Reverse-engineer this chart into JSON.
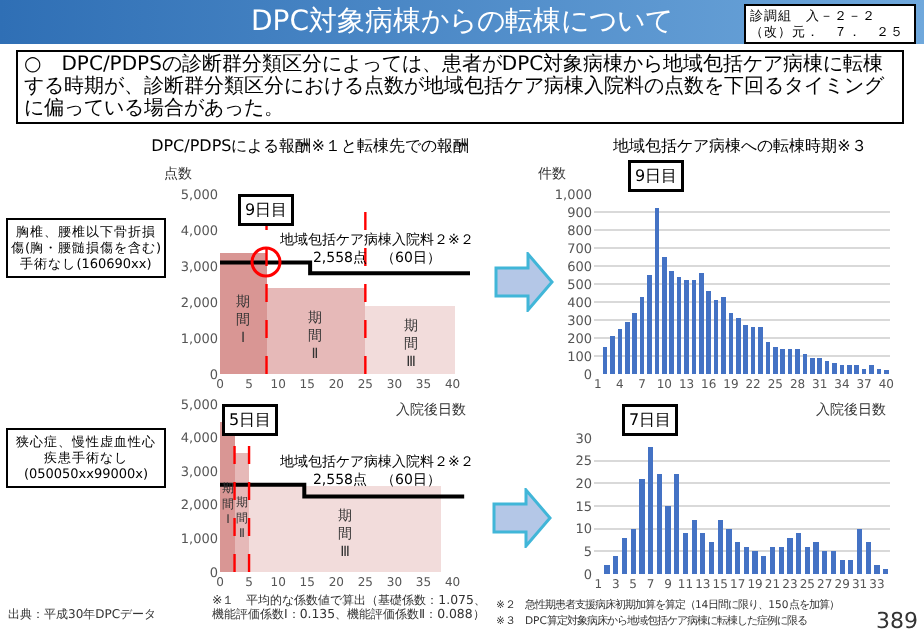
{
  "chart_data": [
    {
      "type": "other",
      "title": "DPC対象病棟からの転棟について",
      "subtitle": "○　DPC/PDPSの診断群分類区分によっては、患者がDPC対象病棟から地域包括ケア病棟に転棟する時期が、診断群分類区分における点数が地域包括ケア病棟入院料の点数を下回るタイミングに偏っている場合があった。",
      "annotations": [
        "診調組　入－２－２（改）元．　７．　２５",
        "出典：平成30年DPCデータ",
        "※１　平均的な係数値で算出（基礎係数：1.075、機能評価係数Ⅰ：0.135、機能評価係数Ⅱ：0.088）",
        "※２　急性期患者支援病床初期加算を算定（14日間に限り、150点を加算）",
        "※３　DPC算定対象病床から地域包括ケア病棟に転棟した症例に限る",
        "389"
      ]
    },
    {
      "type": "step",
      "title": "DPC/PDPSによる報酬※１と転棟先での報酬",
      "xlabel": "入院後日数",
      "ylabel": "点数",
      "xlim": [
        0,
        43
      ],
      "xticks": [
        0,
        5,
        10,
        15,
        20,
        25,
        30,
        35,
        40
      ],
      "ylim": [
        0,
        5000
      ],
      "yticks": [
        0,
        {
          "value": 1000,
          "label": "1,000"
        },
        {
          "value": 2000,
          "label": "2,000"
        },
        {
          "value": 3000,
          "label": "3,000"
        },
        {
          "value": 4000,
          "label": "4,000"
        },
        {
          "value": 5000,
          "label": "5,000"
        }
      ],
      "grid": false,
      "series": [
        {
          "type": "histogram",
          "bins": [
            0,
            8,
            25,
            40.5
          ],
          "values": [
            3350,
            2400,
            1900
          ],
          "colors": [
            "#d99694",
            "#e6b9b8",
            "#f2dcdb"
          ]
        },
        {
          "type": "step",
          "color": "#000000",
          "x": [
            0,
            15.5,
            43
          ],
          "values": [
            3100,
            2800,
            2800
          ]
        }
      ],
      "ref_lines": [
        {
          "axis": "x",
          "value": 8,
          "label": "9日目",
          "color": "#ff0000",
          "line_style": "dashed"
        },
        {
          "axis": "x",
          "value": 25,
          "color": "#ff0000",
          "line_style": "dashed"
        }
      ],
      "annotations": [
        "胸椎、腰椎以下骨折損傷(胸・腰髄損傷を含む)手術なし(160690xx)",
        "期間Ⅰ",
        "期間Ⅱ",
        "期間Ⅲ",
        {
          "text": "地域包括ケア病棟入院料２※２\n2,558点　（60日）",
          "x": 27,
          "y": 2800
        }
      ]
    },
    {
      "type": "bar",
      "title": "地域包括ケア病棟への転棟時期※３",
      "xlabel": "入院後日数",
      "ylabel": "件数",
      "x": [
        2,
        3,
        4,
        5,
        6,
        7,
        8,
        9,
        10,
        11,
        12,
        13,
        14,
        15,
        16,
        17,
        18,
        19,
        20,
        21,
        22,
        23,
        24,
        25,
        26,
        27,
        28,
        29,
        30,
        31,
        32,
        33,
        34,
        35,
        36,
        37,
        38,
        39,
        40
      ],
      "values": [
        150,
        210,
        250,
        290,
        340,
        430,
        550,
        920,
        650,
        570,
        540,
        520,
        520,
        560,
        460,
        410,
        430,
        340,
        310,
        270,
        260,
        260,
        180,
        150,
        140,
        140,
        140,
        110,
        90,
        90,
        70,
        60,
        50,
        50,
        50,
        30,
        50,
        30,
        20
      ],
      "color": "#4472c4",
      "xlim": [
        0.5,
        40.5
      ],
      "xticks": [
        1,
        4,
        7,
        10,
        13,
        16,
        19,
        22,
        25,
        28,
        31,
        34,
        37,
        40
      ],
      "ylim": [
        0,
        1000
      ],
      "yticks": [
        0,
        100,
        200,
        300,
        400,
        500,
        600,
        700,
        800,
        900,
        {
          "value": 1000,
          "label": "1,000"
        }
      ],
      "grid": "y",
      "annotations": [
        "9日目"
      ]
    },
    {
      "type": "step",
      "xlim": [
        0,
        43
      ],
      "xticks": [
        0,
        5,
        10,
        15,
        20,
        25,
        30,
        35,
        40
      ],
      "ylim": [
        0,
        5000
      ],
      "yticks": [
        0,
        {
          "value": 1000,
          "label": "1,000"
        },
        {
          "value": 2000,
          "label": "2,000"
        },
        {
          "value": 3000,
          "label": "3,000"
        },
        {
          "value": 4000,
          "label": "4,000"
        },
        {
          "value": 5000,
          "label": "5,000"
        }
      ],
      "grid": false,
      "series": [
        {
          "type": "histogram",
          "bins": [
            0,
            2.5,
            5,
            38
          ],
          "values": [
            4450,
            3550,
            2550
          ],
          "colors": [
            "#d99694",
            "#e6b9b8",
            "#f2dcdb"
          ]
        },
        {
          "type": "step",
          "color": "#000000",
          "x": [
            0,
            14.5,
            42
          ],
          "values": [
            2600,
            2250,
            2250
          ]
        }
      ],
      "ref_lines": [
        {
          "axis": "x",
          "value": 2.5,
          "color": "#ff0000",
          "line_style": "dashed"
        },
        {
          "axis": "x",
          "value": 5,
          "label": "5日目",
          "color": "#ff0000",
          "line_style": "dashed"
        }
      ],
      "annotations": [
        "狭心症、慢性虚血性心疾患手術なし(050050xx99000x)",
        "期間Ⅰ",
        "期間Ⅱ",
        "期間Ⅲ",
        {
          "text": "地域包括ケア病棟入院料２※２\n2,558点　（60日）",
          "x": 27,
          "y": 2250
        }
      ]
    },
    {
      "type": "bar",
      "x": [
        2,
        3,
        4,
        5,
        6,
        7,
        8,
        9,
        10,
        11,
        12,
        13,
        14,
        15,
        16,
        17,
        18,
        19,
        20,
        21,
        22,
        23,
        24,
        25,
        26,
        27,
        28,
        29,
        30,
        31,
        32,
        33,
        34
      ],
      "values": [
        2,
        4,
        8,
        10,
        21,
        28,
        22,
        15,
        22,
        9,
        12,
        9,
        7,
        12,
        10,
        7,
        6,
        5,
        4,
        6,
        6,
        8,
        9,
        6,
        7,
        5,
        5,
        3,
        3,
        10,
        7,
        2,
        1
      ],
      "color": "#4472c4",
      "xlim": [
        0.5,
        34.5
      ],
      "xticks": [
        1,
        3,
        5,
        7,
        9,
        11,
        13,
        15,
        17,
        19,
        21,
        23,
        25,
        27,
        29,
        31,
        33
      ],
      "ylim": [
        0,
        30
      ],
      "yticks": [
        0,
        5,
        10,
        15,
        20,
        25,
        30
      ],
      "grid": "y",
      "annotations": [
        "7日目"
      ]
    }
  ]
}
